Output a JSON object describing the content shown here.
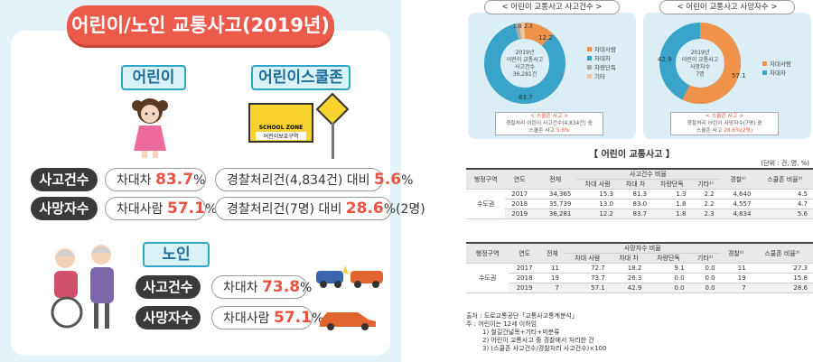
{
  "infographic": {
    "title": "어린이/노인 교통사고(2019년)",
    "child_label": "어린이",
    "school_zone_label": "어린이스쿨존",
    "sign": {
      "line1": "SCHOOL ZONE",
      "line2": "어린이보호구역",
      "side": "SCHOOL ZONE"
    },
    "child_accidents": {
      "label": "사고건수",
      "type": "차대차",
      "value": "83.7",
      "unit": "%"
    },
    "child_deaths": {
      "label": "사망자수",
      "type": "차대사람",
      "value": "57.1",
      "unit": "%"
    },
    "zone_accidents": {
      "prefix": "경찰처리건(4,834건) 대비",
      "value": "5.6",
      "unit": "%"
    },
    "zone_deaths": {
      "prefix": "경찰처리건(7명) 대비",
      "value": "28.6",
      "unit": "%(2명)"
    },
    "elderly_label": "노인",
    "elderly_accidents": {
      "label": "사고건수",
      "type": "차대차",
      "value": "73.8",
      "unit": "%"
    },
    "elderly_deaths": {
      "label": "사망자수",
      "type": "차대사람",
      "value": "57.1",
      "unit": "%"
    }
  },
  "panel1": {
    "title": "< 어린이 교통사고 사고건수 >",
    "center": [
      "2019년",
      "어린이 교통사고",
      "사고건수",
      "36,281건"
    ],
    "slices": [
      {
        "name": "차대사람",
        "value": 12.2,
        "color": "#f0924a"
      },
      {
        "name": "차대차",
        "value": 83.7,
        "color": "#3aa3c9"
      },
      {
        "name": "차량단독",
        "value": 1.8,
        "color": "#a8a8a8"
      },
      {
        "name": "기타",
        "value": 2.3,
        "color": "#f3c19a"
      }
    ],
    "labels": {
      "a": "12.2",
      "b": "83.7",
      "c": "1.8",
      "d": "2.3"
    },
    "note_title": "< 스쿨존 사고 >",
    "note_body": "경찰처리 어린이 사고건수(4,834건) 중",
    "note_tail_pre": "스쿨존 사고 ",
    "note_tail_val": "5.6%"
  },
  "panel2": {
    "title": "< 어린이 교통사고 사망자수 >",
    "center": [
      "2019년",
      "어린이 교통사고",
      "사망자수",
      "7명"
    ],
    "slices": [
      {
        "name": "차대사람",
        "value": 57.1,
        "color": "#f0924a"
      },
      {
        "name": "차대차",
        "value": 42.9,
        "color": "#3aa3c9"
      }
    ],
    "labels": {
      "a": "42.9",
      "b": "57.1"
    },
    "note_title": "< 스쿨존 사고 >",
    "note_body": "경찰처리 어린이 사망자수(7명) 중",
    "note_tail_pre": "스쿨존 사고 ",
    "note_tail_val": "28.6%(2명)"
  },
  "table": {
    "title": "【 어린이 교통사고 】",
    "unit": "(단위 : 건, 명, %)",
    "t1_group": "사고건수 비율",
    "t2_group": "사망자수 비율",
    "headers": {
      "region": "행정구역",
      "year": "연도",
      "total": "전체",
      "c1": "차대 사람",
      "c2": "차대 차",
      "c3": "차량단독",
      "c4": "기타¹⁾",
      "police": "경찰²⁾",
      "school": "스쿨존 비율³⁾"
    },
    "region": "수도권",
    "t1_rows": [
      [
        "2017",
        "34,365",
        "15.3",
        "81.3",
        "1.3",
        "2.2",
        "4,640",
        "4.5"
      ],
      [
        "2018",
        "35,739",
        "13.0",
        "83.0",
        "1.8",
        "2.2",
        "4,557",
        "4.7"
      ],
      [
        "2019",
        "36,281",
        "12.2",
        "83.7",
        "1.8",
        "2.3",
        "4,834",
        "5.6"
      ]
    ],
    "t2_rows": [
      [
        "2017",
        "11",
        "72.7",
        "18.2",
        "9.1",
        "0.0",
        "11",
        "27.3"
      ],
      [
        "2018",
        "19",
        "73.7",
        "26.3",
        "0.0",
        "0.0",
        "19",
        "15.8"
      ],
      [
        "2019",
        "7",
        "57.1",
        "42.9",
        "0.0",
        "0.0",
        "7",
        "28.6"
      ]
    ]
  },
  "source": {
    "line1": "출처 : 도로교통공단「교통사고통계분석」",
    "line2": "주 : 어린이는 12세 이하임",
    "line3": "1) 철길건널목+기타+미분류",
    "line4": "2) 어린이 교통사고 중 경찰에서 처리한 건",
    "line5": "3) (스쿨존 사고건수/경찰처리 사고건수)×100"
  }
}
